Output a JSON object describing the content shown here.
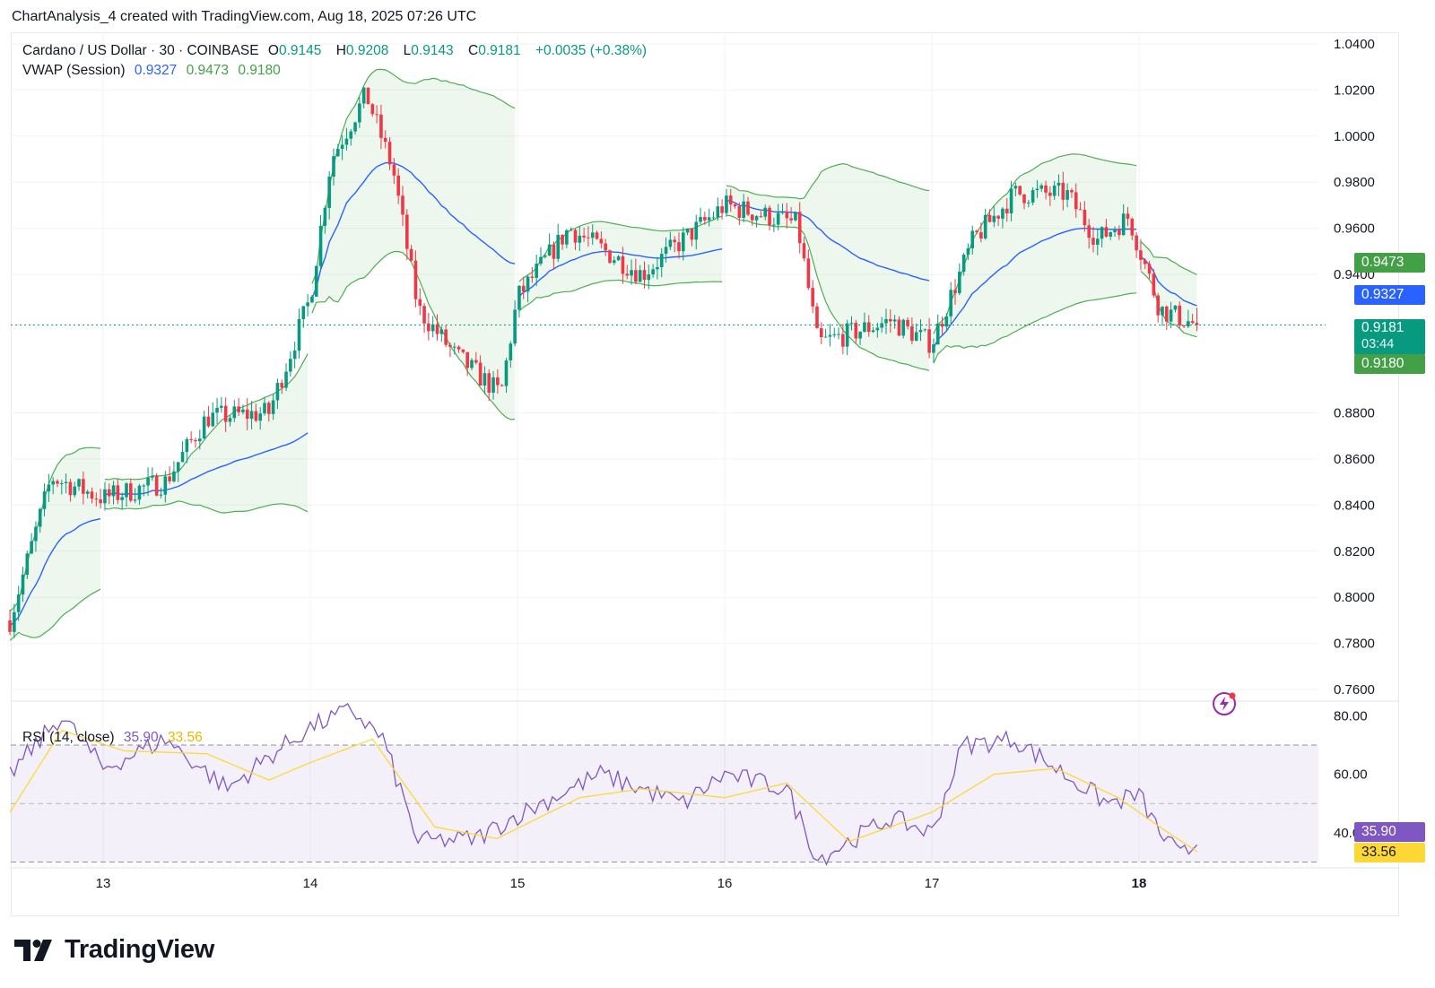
{
  "caption": "ChartAnalysis_4 created with TradingView.com, Aug 18, 2025 07:26 UTC",
  "legend": {
    "symbol": "Cardano / US Dollar · 30 · COINBASE",
    "o_key": "O",
    "o": "0.9145",
    "h_key": "H",
    "h": "0.9208",
    "l_key": "L",
    "l": "0.9143",
    "c_key": "C",
    "c": "0.9181",
    "change": "+0.0035 (+0.38%)",
    "vwap_label": "VWAP (Session)",
    "vwap_vals": [
      "0.9327",
      "0.9473",
      "0.9180"
    ],
    "rsi_label": "RSI (14, close)",
    "rsi_vals": [
      "35.90",
      "33.56"
    ]
  },
  "badges": {
    "upper": "0.9473",
    "vwap": "0.9327",
    "price": "0.9181",
    "countdown": "03:44",
    "lower": "0.9180",
    "rsi": "35.90",
    "rsi_ma": "33.56"
  },
  "colors": {
    "up": "#089981",
    "down": "#f23645",
    "vwap": "#2962ff",
    "band": "#4caf50",
    "rsi": "#7e57c2",
    "rsi_ma": "#fdd835",
    "rsi_badge": "#7e57c2"
  },
  "brand": "TradingView",
  "chart_data": [
    {
      "type": "candlestick",
      "title": "Cardano / US Dollar · 30 · COINBASE",
      "x_ticks": [
        "13",
        "14",
        "15",
        "16",
        "17",
        "18"
      ],
      "y_ticks": [
        "1.0400",
        "1.0200",
        "1.0000",
        "0.9800",
        "0.9600",
        "0.9400",
        "0.8800",
        "0.8600",
        "0.8400",
        "0.8200",
        "0.8000",
        "0.7800",
        "0.7600"
      ],
      "ylim": [
        0.755,
        1.045
      ],
      "price_line": 0.9181,
      "key_points": [
        {
          "day": 12.55,
          "price": 0.79
        },
        {
          "day": 12.75,
          "price": 0.852
        },
        {
          "day": 13.0,
          "price": 0.843
        },
        {
          "day": 13.3,
          "price": 0.85
        },
        {
          "day": 13.5,
          "price": 0.878
        },
        {
          "day": 13.8,
          "price": 0.88
        },
        {
          "day": 14.0,
          "price": 0.93
        },
        {
          "day": 14.1,
          "price": 0.99
        },
        {
          "day": 14.27,
          "price": 1.018
        },
        {
          "day": 14.4,
          "price": 0.985
        },
        {
          "day": 14.52,
          "price": 0.925
        },
        {
          "day": 14.7,
          "price": 0.905
        },
        {
          "day": 14.92,
          "price": 0.888
        },
        {
          "day": 15.0,
          "price": 0.93
        },
        {
          "day": 15.25,
          "price": 0.96
        },
        {
          "day": 15.6,
          "price": 0.94
        },
        {
          "day": 16.0,
          "price": 0.97
        },
        {
          "day": 16.35,
          "price": 0.962
        },
        {
          "day": 16.45,
          "price": 0.91
        },
        {
          "day": 16.8,
          "price": 0.92
        },
        {
          "day": 17.0,
          "price": 0.91
        },
        {
          "day": 17.2,
          "price": 0.955
        },
        {
          "day": 17.4,
          "price": 0.975
        },
        {
          "day": 17.65,
          "price": 0.975
        },
        {
          "day": 17.8,
          "price": 0.955
        },
        {
          "day": 17.95,
          "price": 0.965
        },
        {
          "day": 18.1,
          "price": 0.925
        },
        {
          "day": 18.28,
          "price": 0.918
        }
      ],
      "vwap_session": {
        "vwap": [
          0.9327,
          0.9473,
          0.918
        ]
      }
    },
    {
      "type": "line",
      "title": "RSI (14, close)",
      "y_ticks": [
        "80.00",
        "60.00",
        "40.00"
      ],
      "ylim": [
        28,
        85
      ],
      "bands": [
        30,
        50,
        70
      ],
      "series": [
        {
          "name": "RSI",
          "points": [
            [
              12.55,
              60
            ],
            [
              12.8,
              80
            ],
            [
              13.0,
              62
            ],
            [
              13.3,
              72
            ],
            [
              13.6,
              55
            ],
            [
              13.8,
              66
            ],
            [
              14.0,
              76
            ],
            [
              14.2,
              82
            ],
            [
              14.35,
              72
            ],
            [
              14.52,
              37
            ],
            [
              14.8,
              38
            ],
            [
              15.0,
              46
            ],
            [
              15.4,
              60
            ],
            [
              15.8,
              50
            ],
            [
              16.0,
              60
            ],
            [
              16.3,
              55
            ],
            [
              16.45,
              31
            ],
            [
              16.8,
              45
            ],
            [
              17.0,
              40
            ],
            [
              17.15,
              70
            ],
            [
              17.4,
              72
            ],
            [
              17.6,
              62
            ],
            [
              17.85,
              50
            ],
            [
              18.0,
              53
            ],
            [
              18.1,
              40
            ],
            [
              18.2,
              32
            ],
            [
              18.28,
              35.9
            ]
          ]
        },
        {
          "name": "RSI MA",
          "points": [
            [
              12.55,
              47
            ],
            [
              12.8,
              75
            ],
            [
              13.1,
              68
            ],
            [
              13.5,
              67
            ],
            [
              13.8,
              58
            ],
            [
              14.0,
              64
            ],
            [
              14.3,
              72
            ],
            [
              14.6,
              42
            ],
            [
              14.9,
              38
            ],
            [
              15.3,
              52
            ],
            [
              15.6,
              55
            ],
            [
              16.0,
              52
            ],
            [
              16.3,
              57
            ],
            [
              16.6,
              37
            ],
            [
              17.0,
              47
            ],
            [
              17.3,
              60
            ],
            [
              17.6,
              62
            ],
            [
              17.9,
              52
            ],
            [
              18.1,
              42
            ],
            [
              18.28,
              33.56
            ]
          ]
        }
      ]
    }
  ]
}
